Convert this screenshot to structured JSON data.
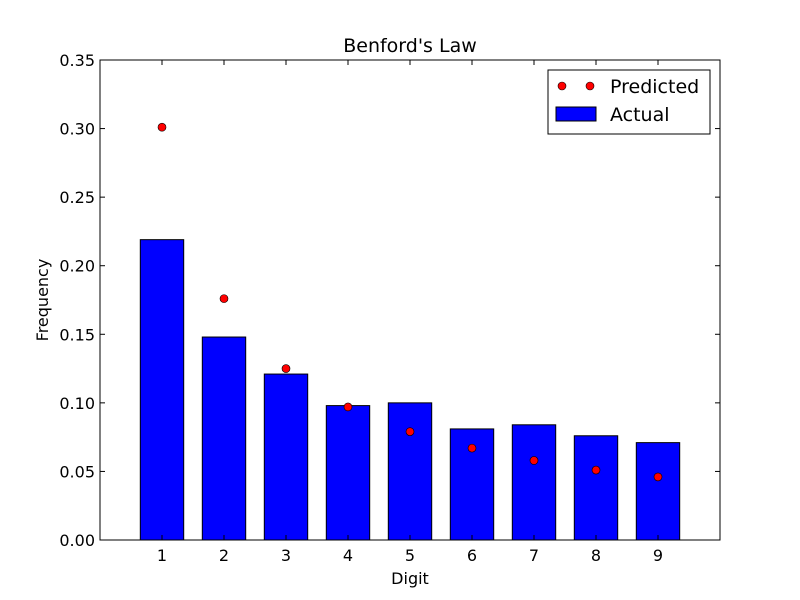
{
  "chart_data": {
    "type": "bar",
    "title": "Benford's Law",
    "xlabel": "Digit",
    "ylabel": "Frequency",
    "categories": [
      "1",
      "2",
      "3",
      "4",
      "5",
      "6",
      "7",
      "8",
      "9"
    ],
    "series": [
      {
        "name": "Actual",
        "type": "bar",
        "color": "#0000ff",
        "values": [
          0.219,
          0.148,
          0.121,
          0.098,
          0.1,
          0.081,
          0.084,
          0.076,
          0.071
        ]
      },
      {
        "name": "Predicted",
        "type": "scatter",
        "color": "#ff0000",
        "values": [
          0.301,
          0.176,
          0.125,
          0.097,
          0.079,
          0.067,
          0.058,
          0.051,
          0.046
        ]
      }
    ],
    "ylim": [
      0,
      0.35
    ],
    "yticks": [
      "0.00",
      "0.05",
      "0.10",
      "0.15",
      "0.20",
      "0.25",
      "0.30",
      "0.35"
    ],
    "legend_position": "top-right",
    "grid": false
  }
}
